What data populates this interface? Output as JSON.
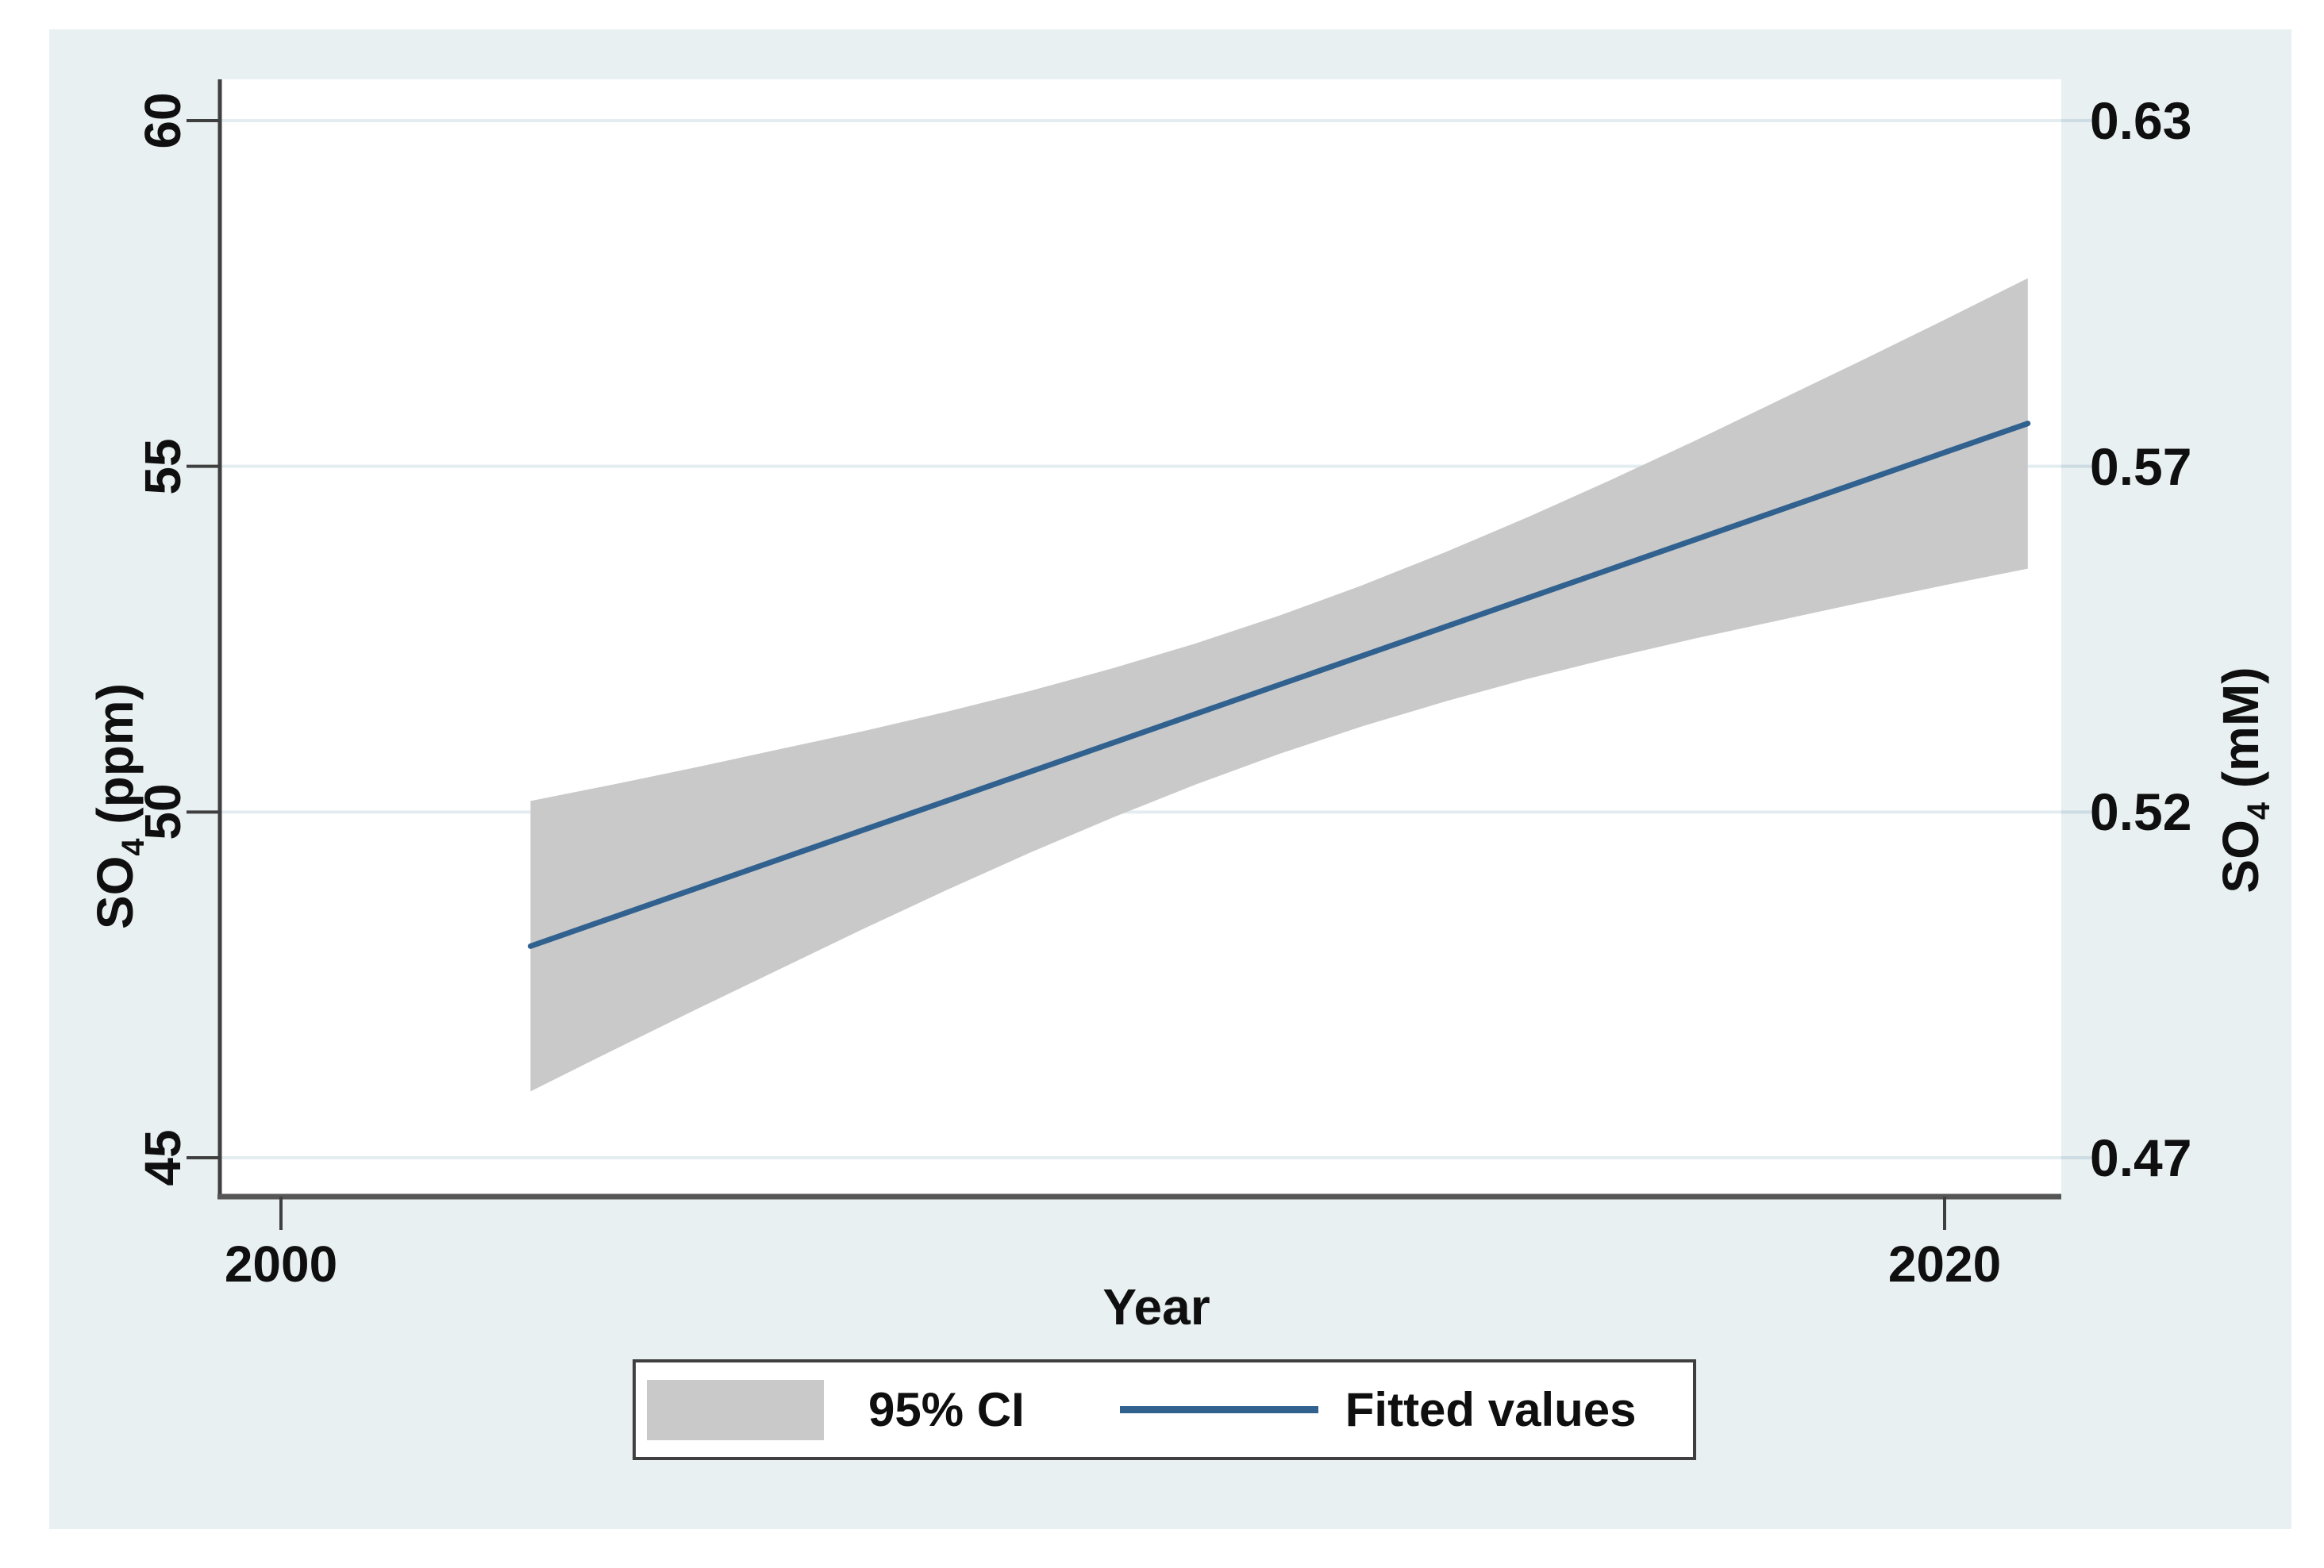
{
  "figure": {
    "background_color": "#ffffff",
    "canvas_color": "#e9f0f2",
    "plot_background_color": "#ffffff",
    "gridline_color": "#e3edf0",
    "axis_line_color": "#3f3f3f",
    "bottom_axis_color": "#565656",
    "right_tick_color": "#ccdce2",
    "text_color": "#0f0f0f"
  },
  "chart_data": {
    "type": "line",
    "title": "",
    "xlabel": "Year",
    "x_ticks": [
      {
        "value": 2000,
        "label": "2000"
      },
      {
        "value": 2020,
        "label": "2020"
      }
    ],
    "xlim": [
      1999.3,
      2021.4
    ],
    "y_left": {
      "label_prefix": "SO",
      "label_sub": "4",
      "label_suffix": " (ppm)",
      "ylim": [
        44.5,
        60.6
      ]
    },
    "y_right": {
      "label_prefix": "SO",
      "label_sub": "4",
      "label_suffix": " (mM)"
    },
    "y_ticks": [
      {
        "value": 60,
        "left_label": "60",
        "right_label": "0.63"
      },
      {
        "value": 55,
        "left_label": "55",
        "right_label": "0.57"
      },
      {
        "value": 50,
        "left_label": "50",
        "right_label": "0.52"
      },
      {
        "value": 45,
        "left_label": "45",
        "right_label": "0.47"
      }
    ],
    "grid": true,
    "legend_position": "bottom-center",
    "series": [
      {
        "name": "95% CI",
        "type": "area",
        "color": "#c9c9c9",
        "years": [
          2003,
          2004,
          2005,
          2006,
          2007,
          2008,
          2009,
          2010,
          2011,
          2012,
          2013,
          2014,
          2015,
          2016,
          2017,
          2018,
          2019,
          2020,
          2021
        ],
        "upper": [
          50.16,
          50.4,
          50.65,
          50.91,
          51.17,
          51.45,
          51.75,
          52.08,
          52.44,
          52.84,
          53.28,
          53.76,
          54.27,
          54.81,
          55.37,
          55.95,
          56.53,
          57.12,
          57.72
        ],
        "lower": [
          45.96,
          46.56,
          47.15,
          47.73,
          48.31,
          48.87,
          49.41,
          49.92,
          50.4,
          50.84,
          51.24,
          51.6,
          51.93,
          52.23,
          52.51,
          52.77,
          53.03,
          53.28,
          53.52
        ]
      },
      {
        "name": "Fitted values",
        "type": "line",
        "color": "#31618f",
        "years": [
          2003,
          2004,
          2005,
          2006,
          2007,
          2008,
          2009,
          2010,
          2011,
          2012,
          2013,
          2014,
          2015,
          2016,
          2017,
          2018,
          2019,
          2020,
          2021
        ],
        "values": [
          48.06,
          48.48,
          48.9,
          49.32,
          49.74,
          50.16,
          50.58,
          51.0,
          51.42,
          51.84,
          52.26,
          52.68,
          53.1,
          53.52,
          53.94,
          54.36,
          54.78,
          55.2,
          55.62
        ]
      }
    ],
    "legend": {
      "ci_label": "95% CI",
      "fitted_label": "Fitted values"
    }
  }
}
